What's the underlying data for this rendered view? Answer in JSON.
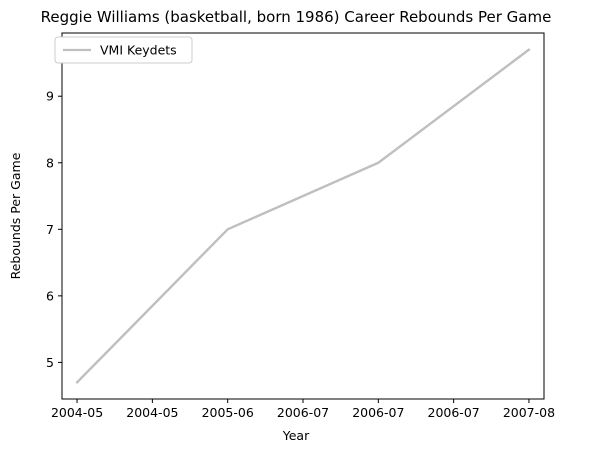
{
  "chart_data": {
    "type": "line",
    "title": "Reggie Williams (basketball, born 1986) Career Rebounds Per Game",
    "xlabel": "Year",
    "ylabel": "Rebounds Per Game",
    "x_tick_labels": [
      "2004-05",
      "2004-05",
      "2005-06",
      "2006-07",
      "2006-07",
      "2006-07",
      "2007-08"
    ],
    "y_ticks": [
      5,
      6,
      7,
      8,
      9
    ],
    "xlim": [
      -0.1,
      3.1
    ],
    "ylim": [
      4.45,
      9.95
    ],
    "series": [
      {
        "name": "VMI Keydets",
        "x": [
          0,
          1,
          2,
          3
        ],
        "y": [
          4.7,
          7.0,
          8.0,
          9.7
        ],
        "color": "#bfbfbf"
      }
    ],
    "legend_position": "top-left",
    "grid": false
  }
}
